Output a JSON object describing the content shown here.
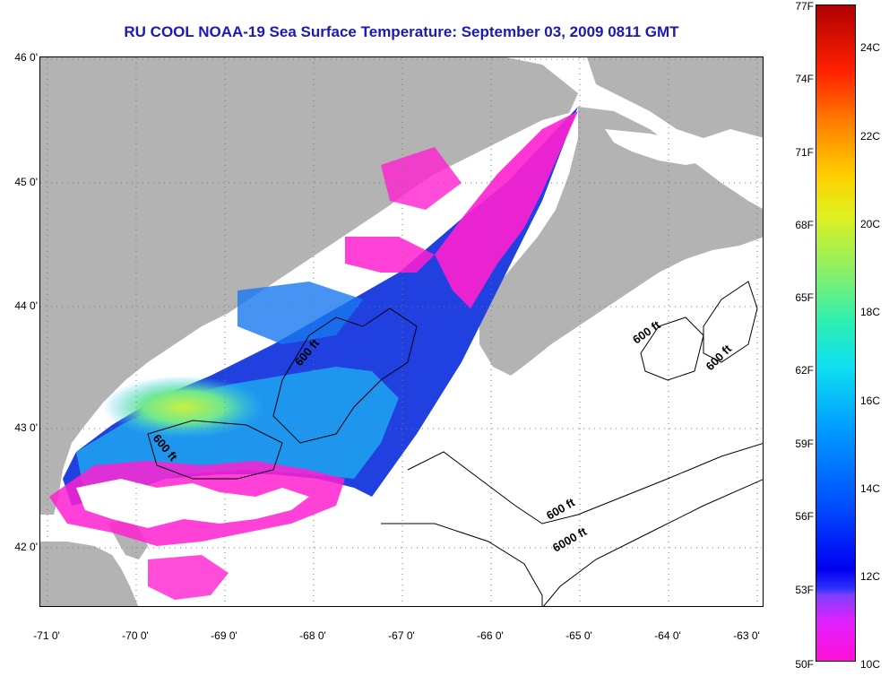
{
  "title": "RU COOL  NOAA-19  Sea Surface Temperature:  September 03, 2009 0811 GMT",
  "latitude_labels": [
    "46 0'",
    "45 0'",
    "44 0'",
    "43 0'",
    "42 0'"
  ],
  "longitude_labels": [
    "-71 0'",
    "-70 0'",
    "-69 0'",
    "-68 0'",
    "-67 0'",
    "-66 0'",
    "-65 0'",
    "-64 0'",
    "-63 0'"
  ],
  "contour_labels": [
    "600 ft",
    "600 ft",
    "600 ft",
    "600 ft",
    "600 ft",
    "6000 ft"
  ],
  "colorbar": {
    "fahrenheit_labels": [
      "77F",
      "74F",
      "71F",
      "68F",
      "65F",
      "62F",
      "59F",
      "56F",
      "53F",
      "50F"
    ],
    "celsius_labels": [
      "24C",
      "22C",
      "20C",
      "18C",
      "16C",
      "14C",
      "12C",
      "10C"
    ]
  },
  "colors": {
    "land": "#b3b3b3",
    "title": "#1a1ab4"
  }
}
